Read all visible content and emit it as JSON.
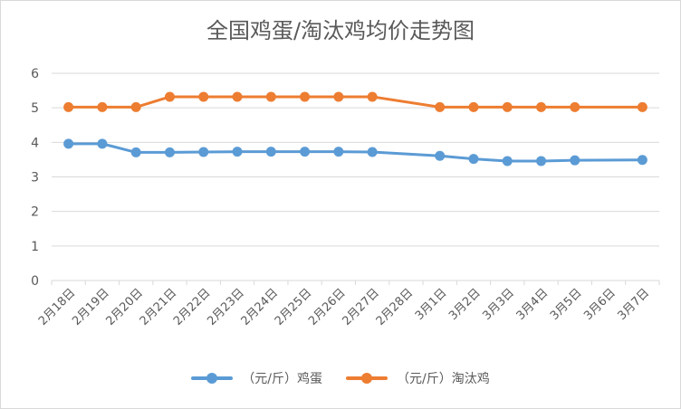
{
  "chart_data": {
    "type": "line",
    "title": "全国鸡蛋/淘汰鸡均价走势图",
    "categories": [
      "2月18日",
      "2月19日",
      "2月20日",
      "2月21日",
      "2月22日",
      "2月23日",
      "2月24日",
      "2月25日",
      "2月26日",
      "2月27日",
      "2月28日",
      "3月1日",
      "3月2日",
      "3月3日",
      "3月4日",
      "3月5日",
      "3月6日",
      "3月7日"
    ],
    "ylim": [
      0,
      6
    ],
    "yticks": [
      "0",
      "1",
      "2",
      "3",
      "4",
      "5",
      "6"
    ],
    "grid": true,
    "legend_position": "bottom",
    "series": [
      {
        "name": "（元/斤）鸡蛋",
        "color": "#5b9bd5",
        "values": [
          3.96,
          3.96,
          3.71,
          3.71,
          3.72,
          3.73,
          3.73,
          3.73,
          3.73,
          3.72,
          null,
          3.61,
          3.52,
          3.46,
          3.46,
          3.48,
          null,
          3.49
        ]
      },
      {
        "name": "（元/斤）淘汰鸡",
        "color": "#ed7d31",
        "values": [
          5.02,
          5.02,
          5.02,
          5.32,
          5.32,
          5.32,
          5.32,
          5.32,
          5.32,
          5.32,
          null,
          5.02,
          5.02,
          5.02,
          5.02,
          5.02,
          null,
          5.02
        ]
      }
    ]
  }
}
